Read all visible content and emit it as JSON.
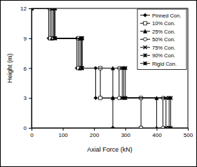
{
  "chart_data": {
    "type": "line",
    "x_label": "Axial Force (kN)",
    "y_label": "Height (m)",
    "xlim": [
      0,
      500
    ],
    "xticks": [
      0,
      100,
      200,
      300,
      400,
      500
    ],
    "ylim": [
      0,
      12
    ],
    "yticks": [
      0,
      3,
      6,
      9,
      12
    ],
    "grid": false,
    "legend": "upper right",
    "series": [
      {
        "name": "Pinned Con.",
        "color": "#000000",
        "marker": "diamond",
        "x": [
          0,
          55,
          55,
          145,
          145,
          205,
          205,
          260,
          260
        ],
        "values": [
          12,
          12,
          9,
          9,
          6,
          6,
          3,
          3,
          0
        ]
      },
      {
        "name": "10% Con.",
        "color": "#000000",
        "marker": "square",
        "x": [
          0,
          60,
          60,
          150,
          150,
          220,
          220,
          350,
          350
        ],
        "values": [
          12,
          12,
          9,
          9,
          6,
          6,
          3,
          3,
          0
        ]
      },
      {
        "name": "25% Con.",
        "color": "#000000",
        "marker": "triangle",
        "x": [
          0,
          65,
          65,
          155,
          155,
          260,
          260,
          400,
          400
        ],
        "values": [
          12,
          12,
          9,
          9,
          6,
          6,
          3,
          3,
          0
        ]
      },
      {
        "name": "50% Con.",
        "color": "#000000",
        "marker": "circle",
        "x": [
          0,
          70,
          70,
          160,
          160,
          280,
          280,
          420,
          420
        ],
        "values": [
          12,
          12,
          9,
          9,
          6,
          6,
          3,
          3,
          0
        ]
      },
      {
        "name": "75% Con.",
        "color": "#000000",
        "marker": "x",
        "x": [
          0,
          72,
          72,
          160,
          160,
          290,
          290,
          430,
          430
        ],
        "values": [
          12,
          12,
          9,
          9,
          6,
          6,
          3,
          3,
          0
        ]
      },
      {
        "name": "90% Con.",
        "color": "#000000",
        "marker": "asterisk",
        "x": [
          0,
          75,
          75,
          160,
          160,
          295,
          295,
          440,
          440
        ],
        "values": [
          12,
          12,
          9,
          9,
          6,
          6,
          3,
          3,
          0
        ]
      },
      {
        "name": "Rigid Con.",
        "color": "#000000",
        "marker": "star",
        "x": [
          0,
          75,
          75,
          162,
          162,
          300,
          300,
          445,
          445
        ],
        "values": [
          12,
          12,
          9,
          9,
          6,
          6,
          3,
          3,
          0
        ]
      }
    ]
  }
}
